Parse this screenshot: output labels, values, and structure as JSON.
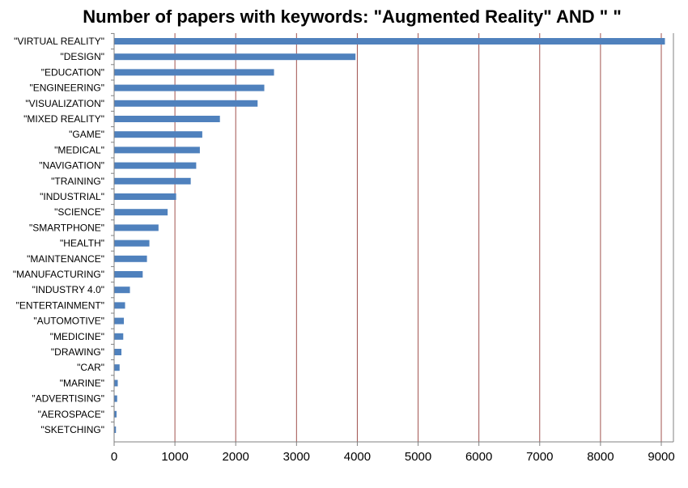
{
  "chart_data": {
    "type": "bar",
    "orientation": "horizontal",
    "title": "Number of papers with keywords: \"Augmented Reality\" AND \" \"",
    "categories": [
      "\"VIRTUAL REALITY\"",
      "\"DESIGN\"",
      "\"EDUCATION\"",
      "\"ENGINEERING\"",
      "\"VISUALIZATION\"",
      "\"MIXED REALITY\"",
      "\"GAME\"",
      "\"MEDICAL\"",
      "\"NAVIGATION\"",
      "\"TRAINING\"",
      "\"INDUSTRIAL\"",
      "\"SCIENCE\"",
      "\"SMARTPHONE\"",
      "\"HEALTH\"",
      "\"MAINTENANCE\"",
      "\"MANUFACTURING\"",
      "\"INDUSTRY 4.0\"",
      "\"ENTERTAINMENT\"",
      "\"AUTOMOTIVE\"",
      "\"MEDICINE\"",
      "\"DRAWING\"",
      "\"CAR\"",
      "\"MARINE\"",
      "\"ADVERTISING\"",
      "\"AEROSPACE\"",
      "\"SKETCHING\""
    ],
    "values": [
      9060,
      3970,
      2630,
      2470,
      2360,
      1740,
      1450,
      1410,
      1350,
      1260,
      1020,
      880,
      730,
      580,
      540,
      470,
      260,
      180,
      160,
      150,
      120,
      90,
      60,
      50,
      40,
      30
    ],
    "xlim": [
      0,
      9000
    ],
    "xticks": [
      "0",
      "1000",
      "2000",
      "3000",
      "4000",
      "5000",
      "6000",
      "7000",
      "8000",
      "9000"
    ],
    "grid": "vertical",
    "legend": "none",
    "bar_color": "#4F81BD",
    "grid_color": "#A0524E",
    "axis_color": "#808080"
  }
}
